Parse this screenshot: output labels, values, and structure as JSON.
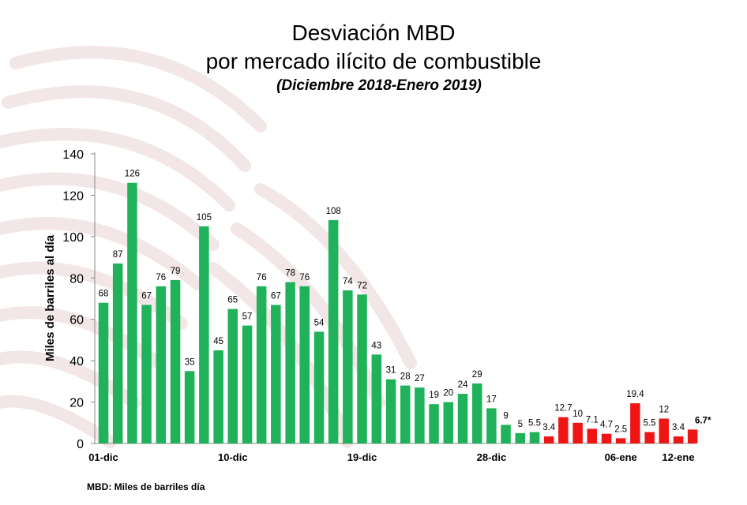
{
  "title_line1": "Desviación MBD",
  "title_line2": "por mercado ilícito de combustible",
  "subtitle": "(Diciembre 2018-Enero 2019)",
  "footnote": "MBD: Miles de barriles día",
  "colors": {
    "green": "#1fb25a",
    "red": "#f01515",
    "watermark": "#f3e6e6"
  },
  "chart_data": {
    "type": "bar",
    "ylabel": "Miles de barriles al día",
    "ylim": [
      0,
      140
    ],
    "yticks": [
      0,
      20,
      40,
      60,
      80,
      100,
      120,
      140
    ],
    "values": [
      68,
      87,
      126,
      67,
      76,
      79,
      35,
      105,
      45,
      65,
      57,
      76,
      67,
      78,
      76,
      54,
      108,
      74,
      72,
      43,
      31,
      28,
      27,
      19,
      20,
      24,
      29,
      17,
      9,
      5,
      5.5,
      3.4,
      12.7,
      10,
      7.1,
      4.7,
      2.5,
      19.4,
      5.5,
      12,
      3.4,
      6.7
    ],
    "labels": [
      "68",
      "87",
      "126",
      "67",
      "76",
      "79",
      "35",
      "105",
      "45",
      "65",
      "57",
      "76",
      "67",
      "78",
      "76",
      "54",
      "108",
      "74",
      "72",
      "43",
      "31",
      "28",
      "27",
      "19",
      "20",
      "24",
      "29",
      "17",
      "9",
      "5",
      "5.5",
      "3.4",
      "12.7",
      "10",
      "7.1",
      "4.7",
      "2.5",
      "19.4",
      "5.5",
      "12",
      "3.4",
      "6.7*"
    ],
    "colors": [
      "green",
      "green",
      "green",
      "green",
      "green",
      "green",
      "green",
      "green",
      "green",
      "green",
      "green",
      "green",
      "green",
      "green",
      "green",
      "green",
      "green",
      "green",
      "green",
      "green",
      "green",
      "green",
      "green",
      "green",
      "green",
      "green",
      "green",
      "green",
      "green",
      "green",
      "green",
      "red",
      "red",
      "red",
      "red",
      "red",
      "red",
      "red",
      "red",
      "red",
      "red",
      "red"
    ],
    "xtick_labels": [
      {
        "index": 0,
        "label": "01-dic"
      },
      {
        "index": 9,
        "label": "10-dic"
      },
      {
        "index": 18,
        "label": "19-dic"
      },
      {
        "index": 27,
        "label": "28-dic"
      },
      {
        "index": 36,
        "label": "06-ene"
      },
      {
        "index": 40,
        "label": "12-ene"
      }
    ],
    "grid": false
  }
}
